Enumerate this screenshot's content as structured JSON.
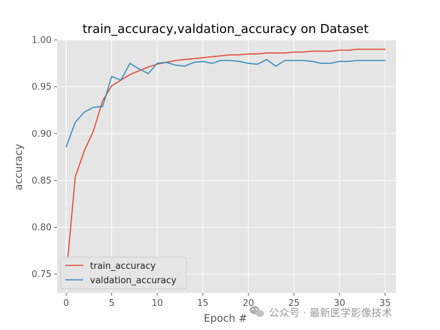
{
  "chart_data": {
    "type": "line",
    "title": "train_accuracy,valdation_accuracy on Dataset",
    "xlabel": "Epoch #",
    "ylabel": "accuracy",
    "xlim": [
      -1.0,
      36.2
    ],
    "ylim": [
      0.73,
      1.0
    ],
    "xticks": [
      0,
      5,
      10,
      15,
      20,
      25,
      30,
      35
    ],
    "yticks": [
      0.75,
      0.8,
      0.85,
      0.9,
      0.95,
      1.0
    ],
    "ytick_labels": [
      "0.75",
      "0.80",
      "0.85",
      "0.90",
      "0.95",
      "1.00"
    ],
    "grid": true,
    "legend": "lower-left",
    "x": [
      0,
      1,
      2,
      3,
      4,
      5,
      6,
      7,
      8,
      9,
      10,
      11,
      12,
      13,
      14,
      15,
      16,
      17,
      18,
      19,
      20,
      21,
      22,
      23,
      24,
      25,
      26,
      27,
      28,
      29,
      30,
      31,
      32,
      33,
      34,
      35
    ],
    "series": [
      {
        "name": "train_accuracy",
        "color": "#E24A33",
        "values": [
          0.748,
          0.854,
          0.882,
          0.903,
          0.935,
          0.951,
          0.957,
          0.963,
          0.967,
          0.971,
          0.974,
          0.976,
          0.978,
          0.979,
          0.98,
          0.981,
          0.982,
          0.983,
          0.984,
          0.984,
          0.985,
          0.985,
          0.986,
          0.986,
          0.986,
          0.987,
          0.987,
          0.988,
          0.988,
          0.988,
          0.989,
          0.989,
          0.99,
          0.99,
          0.99,
          0.99
        ]
      },
      {
        "name": "valdation_accuracy",
        "color": "#348ABD",
        "values": [
          0.886,
          0.912,
          0.923,
          0.928,
          0.929,
          0.961,
          0.957,
          0.975,
          0.969,
          0.964,
          0.975,
          0.976,
          0.973,
          0.972,
          0.976,
          0.977,
          0.975,
          0.978,
          0.978,
          0.977,
          0.975,
          0.974,
          0.979,
          0.972,
          0.978,
          0.978,
          0.978,
          0.977,
          0.975,
          0.975,
          0.977,
          0.977,
          0.978,
          0.978,
          0.978,
          0.978
        ]
      }
    ]
  },
  "watermark": {
    "icon": "wechat-icon",
    "text": "公众号 · 最新医学影像技术"
  }
}
